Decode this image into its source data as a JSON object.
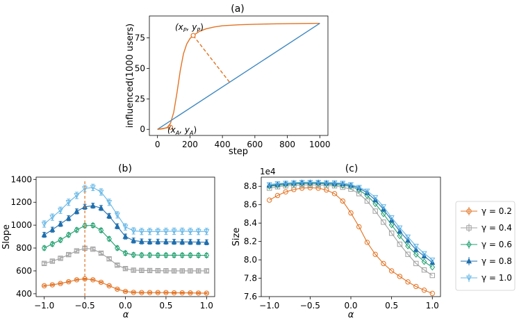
{
  "chart_data": [
    {
      "id": "a",
      "type": "line",
      "title": "(a)",
      "xlabel": "step",
      "ylabel": "influenced(1000 users)",
      "xlim": [
        -50,
        1050
      ],
      "ylim": [
        -5,
        93
      ],
      "xticks": [
        0,
        200,
        400,
        600,
        800,
        1000
      ],
      "yticks": [
        0,
        25,
        50,
        75
      ],
      "series": [
        {
          "name": "influence curve",
          "color": "#e37222",
          "x": [
            0,
            30,
            60,
            80,
            100,
            120,
            140,
            160,
            180,
            200,
            220,
            260,
            300,
            350,
            400,
            500,
            600,
            700,
            800,
            900,
            1000
          ],
          "y": [
            0,
            0.4,
            1.5,
            5,
            14,
            30,
            48,
            62,
            70,
            74.5,
            77,
            80.5,
            82.5,
            84,
            85,
            85.8,
            86.2,
            86.5,
            86.7,
            86.85,
            87
          ]
        },
        {
          "name": "diagonal",
          "color": "#3f89c1",
          "x": [
            0,
            1000
          ],
          "y": [
            0,
            87
          ]
        }
      ],
      "segments": [
        {
          "name": "perpendicular",
          "x": [
            220,
            445
          ],
          "y": [
            77,
            38.5
          ],
          "dashed": true,
          "color": "#e37222"
        },
        {
          "name": "tangent",
          "x": [
            0,
            80
          ],
          "y": [
            0,
            1.7
          ],
          "dashed": false,
          "color": "#e37222"
        }
      ],
      "points": [
        {
          "name": "point-p",
          "x": 220,
          "y": 77,
          "label": "$(x_P, y_P)$"
        },
        {
          "name": "point-a",
          "x": 80,
          "y": 1.7,
          "label": "$(x_A, y_A)$"
        }
      ],
      "annotations": [
        {
          "name": "point-p-label",
          "text": "(x",
          "sub1": "P",
          "mid": ", y",
          "sub2": "P",
          "end": ")"
        },
        {
          "name": "point-a-label",
          "text": "(x",
          "sub1": "A",
          "mid": ", y",
          "sub2": "A",
          "end": ")"
        }
      ]
    },
    {
      "id": "b",
      "type": "line",
      "title": "(b)",
      "xlabel": "α",
      "ylabel": "Slope",
      "xlim": [
        -1.1,
        1.1
      ],
      "ylim": [
        375,
        1420
      ],
      "xticks": [
        -1.0,
        -0.5,
        0.0,
        0.5,
        1.0
      ],
      "yticks": [
        400,
        600,
        800,
        1000,
        1200,
        1400
      ],
      "vline": {
        "x": -0.5,
        "color": "#e37222"
      },
      "x": [
        -1.0,
        -0.9,
        -0.8,
        -0.7,
        -0.6,
        -0.5,
        -0.4,
        -0.3,
        -0.2,
        -0.1,
        0.0,
        0.1,
        0.2,
        0.3,
        0.4,
        0.5,
        0.6,
        0.7,
        0.8,
        0.9,
        1.0
      ],
      "series": [
        {
          "name": "γ = 0.2",
          "marker": "circle",
          "color": "#e37222",
          "err": 6,
          "values": [
            470,
            478,
            490,
            505,
            522,
            530,
            522,
            500,
            470,
            440,
            420,
            412,
            410,
            410,
            410,
            410,
            408,
            408,
            407,
            406,
            405
          ]
        },
        {
          "name": "γ = 0.4",
          "marker": "square",
          "color": "#a0a0a0",
          "err": 12,
          "values": [
            665,
            685,
            710,
            742,
            775,
            798,
            790,
            755,
            705,
            650,
            620,
            606,
            604,
            603,
            602,
            601,
            600,
            600,
            600,
            600,
            600
          ]
        },
        {
          "name": "γ = 0.6",
          "marker": "diamond",
          "color": "#20a070",
          "err": 18,
          "values": [
            800,
            835,
            870,
            915,
            958,
            995,
            998,
            955,
            880,
            800,
            755,
            740,
            738,
            738,
            737,
            737,
            737,
            737,
            737,
            736,
            736
          ]
        },
        {
          "name": "γ = 0.8",
          "marker": "triangle",
          "color": "#1f6fae",
          "err": 22,
          "values": [
            915,
            960,
            1010,
            1060,
            1120,
            1160,
            1170,
            1150,
            1080,
            990,
            900,
            865,
            857,
            855,
            855,
            855,
            854,
            853,
            853,
            852,
            850
          ]
        },
        {
          "name": "γ = 1.0",
          "marker": "tri-down",
          "color": "#64b6e6",
          "err": 28,
          "values": [
            1010,
            1070,
            1130,
            1200,
            1260,
            1320,
            1330,
            1290,
            1200,
            1090,
            985,
            950,
            945,
            945,
            945,
            946,
            947,
            947,
            946,
            945,
            945
          ]
        }
      ]
    },
    {
      "id": "c",
      "type": "line",
      "title": "(c)",
      "xlabel": "α",
      "ylabel": "Size",
      "offset_label": "1e4",
      "xlim": [
        -1.1,
        1.1
      ],
      "ylim": [
        7.6,
        8.9
      ],
      "xticks": [
        -1.0,
        -0.5,
        0.0,
        0.5,
        1.0
      ],
      "yticks": [
        7.6,
        7.8,
        8.0,
        8.2,
        8.4,
        8.6,
        8.8
      ],
      "x": [
        -1.0,
        -0.9,
        -0.8,
        -0.7,
        -0.6,
        -0.5,
        -0.4,
        -0.3,
        -0.2,
        -0.1,
        0.0,
        0.1,
        0.2,
        0.3,
        0.4,
        0.5,
        0.6,
        0.7,
        0.8,
        0.9,
        1.0
      ],
      "series": [
        {
          "name": "γ = 0.2",
          "marker": "circle",
          "color": "#e37222",
          "values": [
            8.65,
            8.7,
            8.74,
            8.765,
            8.78,
            8.785,
            8.78,
            8.76,
            8.72,
            8.64,
            8.51,
            8.36,
            8.19,
            8.06,
            7.96,
            7.88,
            7.82,
            7.76,
            7.71,
            7.67,
            7.635
          ]
        },
        {
          "name": "γ = 0.4",
          "marker": "square",
          "color": "#a0a0a0",
          "values": [
            8.78,
            8.795,
            8.805,
            8.81,
            8.815,
            8.815,
            8.815,
            8.81,
            8.805,
            8.79,
            8.77,
            8.72,
            8.64,
            8.53,
            8.41,
            8.29,
            8.17,
            8.06,
            7.96,
            7.89,
            7.83
          ]
        },
        {
          "name": "γ = 0.6",
          "marker": "diamond",
          "color": "#20a070",
          "values": [
            8.8,
            8.81,
            8.82,
            8.825,
            8.83,
            8.83,
            8.83,
            8.825,
            8.82,
            8.81,
            8.8,
            8.76,
            8.7,
            8.61,
            8.5,
            8.38,
            8.26,
            8.15,
            8.06,
            7.98,
            7.92
          ]
        },
        {
          "name": "γ = 0.8",
          "marker": "triangle",
          "color": "#1f6fae",
          "values": [
            8.81,
            8.82,
            8.83,
            8.835,
            8.84,
            8.84,
            8.84,
            8.835,
            8.83,
            8.825,
            8.81,
            8.78,
            8.73,
            8.65,
            8.55,
            8.43,
            8.31,
            8.21,
            8.11,
            8.04,
            7.97
          ]
        },
        {
          "name": "γ = 1.0",
          "marker": "tri-down",
          "color": "#64b6e6",
          "values": [
            8.82,
            8.83,
            8.835,
            8.84,
            8.845,
            8.845,
            8.845,
            8.84,
            8.84,
            8.835,
            8.82,
            8.79,
            8.75,
            8.68,
            8.58,
            8.46,
            8.35,
            8.25,
            8.15,
            8.07,
            8.0
          ]
        }
      ]
    }
  ],
  "legend": {
    "position": "right",
    "entries": [
      "γ = 0.2",
      "γ = 0.4",
      "γ = 0.6",
      "γ = 0.8",
      "γ = 1.0"
    ]
  }
}
